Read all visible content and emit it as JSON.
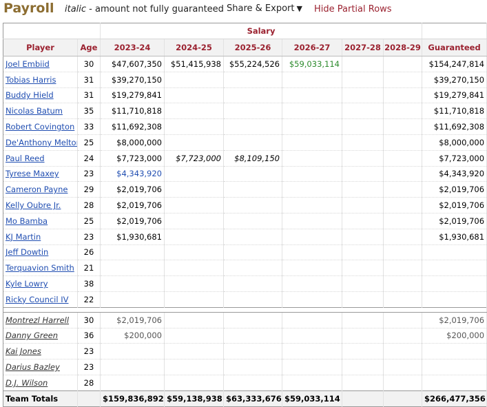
{
  "header": {
    "title": "Payroll",
    "note_italic": "italic",
    "note_rest": " - amount not fully guaranteed",
    "share_label": "Share & Export",
    "share_caret": "▼",
    "hide_label": "Hide Partial Rows"
  },
  "table": {
    "over_header": "Salary",
    "columns": [
      "Player",
      "Age",
      "2023-24",
      "2024-25",
      "2025-26",
      "2026-27",
      "2027-28",
      "2028-29",
      "Guaranteed"
    ],
    "rows": [
      {
        "player": "Joel Embiid",
        "age": "30",
        "s2324": "$47,607,350",
        "s2425": "$51,415,938",
        "s2526": "$55,224,526",
        "s2627": "$59,033,114",
        "s2728": "",
        "s2829": "",
        "guaranteed": "$154,247,814"
      },
      {
        "player": "Tobias Harris",
        "age": "31",
        "s2324": "$39,270,150",
        "s2425": "",
        "s2526": "",
        "s2627": "",
        "s2728": "",
        "s2829": "",
        "guaranteed": "$39,270,150"
      },
      {
        "player": "Buddy Hield",
        "age": "31",
        "s2324": "$19,279,841",
        "s2425": "",
        "s2526": "",
        "s2627": "",
        "s2728": "",
        "s2829": "",
        "guaranteed": "$19,279,841"
      },
      {
        "player": "Nicolas Batum",
        "age": "35",
        "s2324": "$11,710,818",
        "s2425": "",
        "s2526": "",
        "s2627": "",
        "s2728": "",
        "s2829": "",
        "guaranteed": "$11,710,818"
      },
      {
        "player": "Robert Covington",
        "age": "33",
        "s2324": "$11,692,308",
        "s2425": "",
        "s2526": "",
        "s2627": "",
        "s2728": "",
        "s2829": "",
        "guaranteed": "$11,692,308"
      },
      {
        "player": "De'Anthony Melton",
        "age": "25",
        "s2324": "$8,000,000",
        "s2425": "",
        "s2526": "",
        "s2627": "",
        "s2728": "",
        "s2829": "",
        "guaranteed": "$8,000,000"
      },
      {
        "player": "Paul Reed",
        "age": "24",
        "s2324": "$7,723,000",
        "s2425": "$7,723,000",
        "s2526": "$8,109,150",
        "s2627": "",
        "s2728": "",
        "s2829": "",
        "guaranteed": "$7,723,000"
      },
      {
        "player": "Tyrese Maxey",
        "age": "23",
        "s2324": "$4,343,920",
        "s2425": "",
        "s2526": "",
        "s2627": "",
        "s2728": "",
        "s2829": "",
        "guaranteed": "$4,343,920"
      },
      {
        "player": "Cameron Payne",
        "age": "29",
        "s2324": "$2,019,706",
        "s2425": "",
        "s2526": "",
        "s2627": "",
        "s2728": "",
        "s2829": "",
        "guaranteed": "$2,019,706"
      },
      {
        "player": "Kelly Oubre Jr.",
        "age": "28",
        "s2324": "$2,019,706",
        "s2425": "",
        "s2526": "",
        "s2627": "",
        "s2728": "",
        "s2829": "",
        "guaranteed": "$2,019,706"
      },
      {
        "player": "Mo Bamba",
        "age": "25",
        "s2324": "$2,019,706",
        "s2425": "",
        "s2526": "",
        "s2627": "",
        "s2728": "",
        "s2829": "",
        "guaranteed": "$2,019,706"
      },
      {
        "player": "KJ Martin",
        "age": "23",
        "s2324": "$1,930,681",
        "s2425": "",
        "s2526": "",
        "s2627": "",
        "s2728": "",
        "s2829": "",
        "guaranteed": "$1,930,681"
      },
      {
        "player": "Jeff Dowtin",
        "age": "26",
        "s2324": "",
        "s2425": "",
        "s2526": "",
        "s2627": "",
        "s2728": "",
        "s2829": "",
        "guaranteed": ""
      },
      {
        "player": "Terquavion Smith",
        "age": "21",
        "s2324": "",
        "s2425": "",
        "s2526": "",
        "s2627": "",
        "s2728": "",
        "s2829": "",
        "guaranteed": ""
      },
      {
        "player": "Kyle Lowry",
        "age": "38",
        "s2324": "",
        "s2425": "",
        "s2526": "",
        "s2627": "",
        "s2728": "",
        "s2829": "",
        "guaranteed": ""
      },
      {
        "player": "Ricky Council IV",
        "age": "22",
        "s2324": "",
        "s2425": "",
        "s2526": "",
        "s2627": "",
        "s2728": "",
        "s2829": "",
        "guaranteed": ""
      }
    ],
    "partial_rows": [
      {
        "player": "Montrezl Harrell",
        "age": "30",
        "s2324": "$2,019,706",
        "guaranteed": "$2,019,706"
      },
      {
        "player": "Danny Green",
        "age": "36",
        "s2324": "$200,000",
        "guaranteed": "$200,000"
      },
      {
        "player": "Kai Jones",
        "age": "23",
        "s2324": "",
        "guaranteed": ""
      },
      {
        "player": "Darius Bazley",
        "age": "23",
        "s2324": "",
        "guaranteed": ""
      },
      {
        "player": "D.J. Wilson",
        "age": "28",
        "s2324": "",
        "guaranteed": ""
      }
    ],
    "totals": {
      "label": "Team Totals",
      "s2324": "$159,836,892",
      "s2425": "$59,138,938",
      "s2526": "$63,333,676",
      "s2627": "$59,033,114",
      "s2728": "",
      "s2829": "",
      "guaranteed": "$266,477,356"
    }
  },
  "colors": {
    "title": "#8c6d31",
    "header_text": "#9b2230",
    "link": "#1f4db1",
    "option_green": "#2b8a2b"
  }
}
